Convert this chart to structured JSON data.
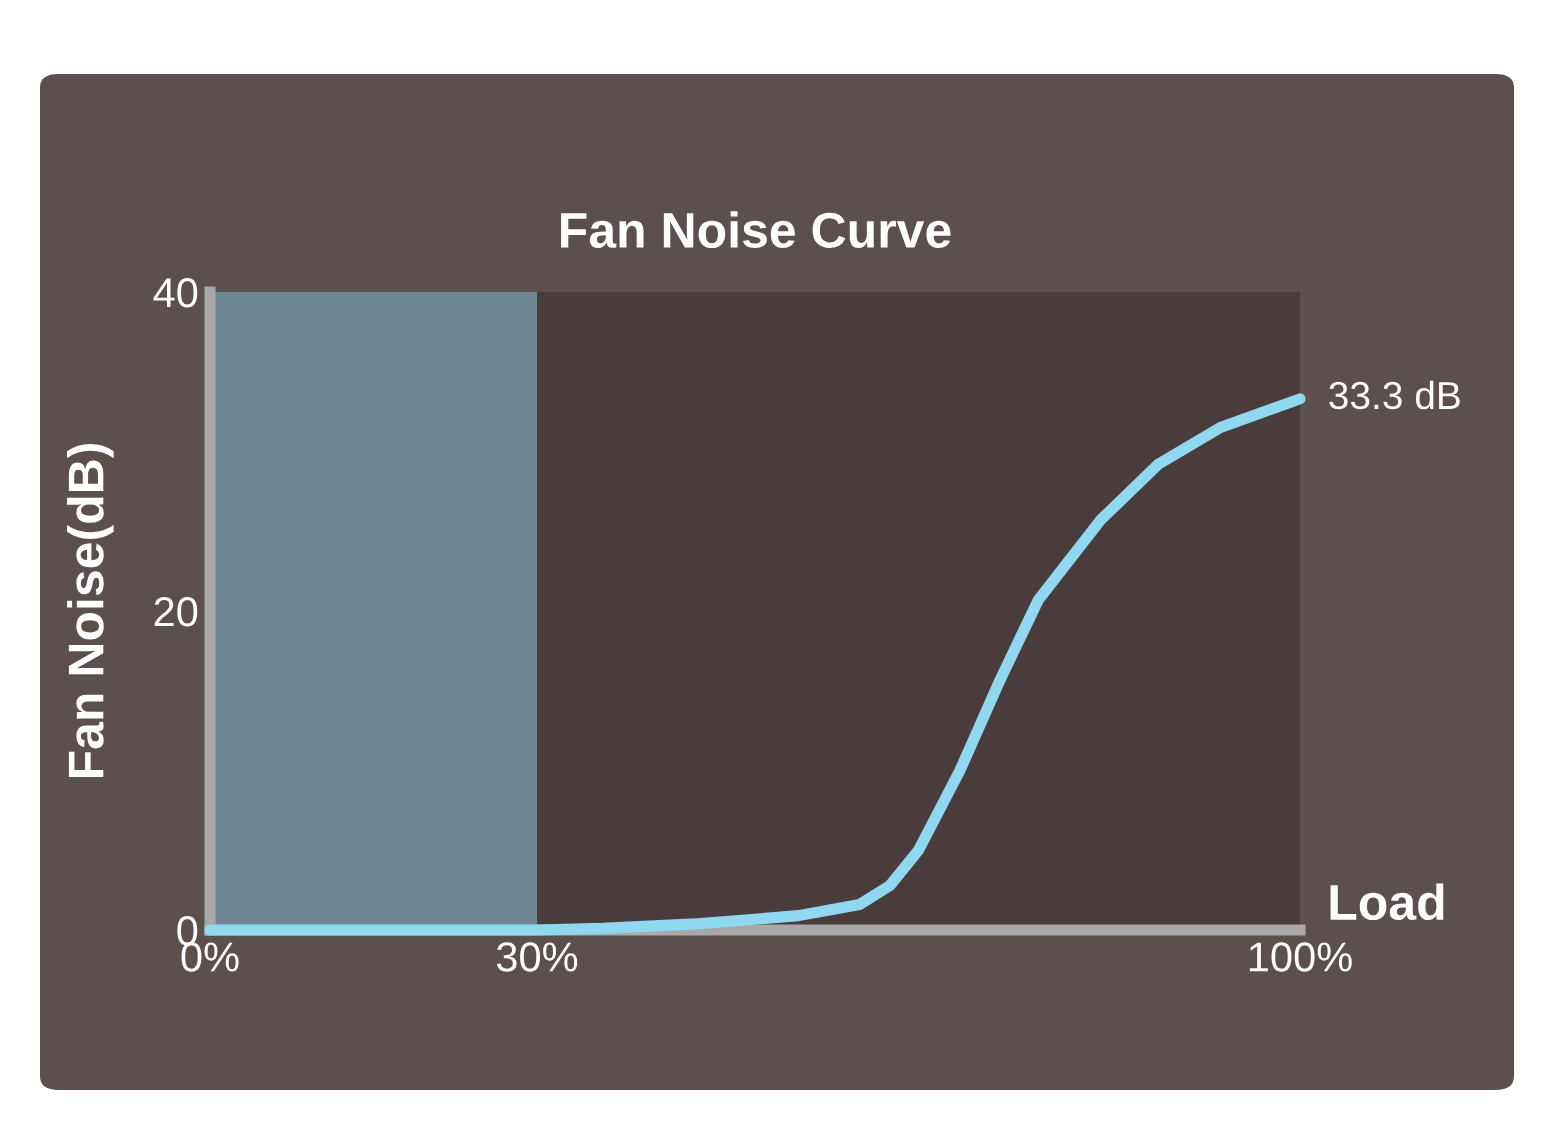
{
  "chart_data": {
    "type": "line",
    "title": "Fan Noise Curve",
    "xlabel": "Load",
    "ylabel": "Fan Noise(dB)",
    "x": [
      0,
      10,
      20,
      30,
      36,
      45,
      54,
      59.6,
      62.4,
      65,
      68.8,
      72.5,
      76,
      81.7,
      87,
      92.7,
      100
    ],
    "series": [
      {
        "color": "#8fd8f0",
        "values": [
          0,
          0,
          0,
          0,
          0.1,
          0.4,
          0.9,
          1.6,
          2.8,
          5.0,
          10,
          15.7,
          20.7,
          25.7,
          29.2,
          31.5,
          33.3
        ]
      }
    ],
    "xlim": [
      0,
      100
    ],
    "ylim": [
      0,
      40
    ],
    "xticks": [
      {
        "value": 0,
        "label": "0%"
      },
      {
        "value": 30,
        "label": "30%"
      },
      {
        "value": 100,
        "label": "100%"
      }
    ],
    "yticks": [
      0,
      20,
      40
    ],
    "bands": [
      {
        "axis": "x",
        "from": 0,
        "to": 30,
        "color": "#6f8795"
      }
    ],
    "annotations": [
      {
        "text": "33.3 dB",
        "x": 100,
        "y": 33.3
      }
    ],
    "grid": false,
    "legend": false,
    "marker": "none",
    "line_style": "solid"
  }
}
